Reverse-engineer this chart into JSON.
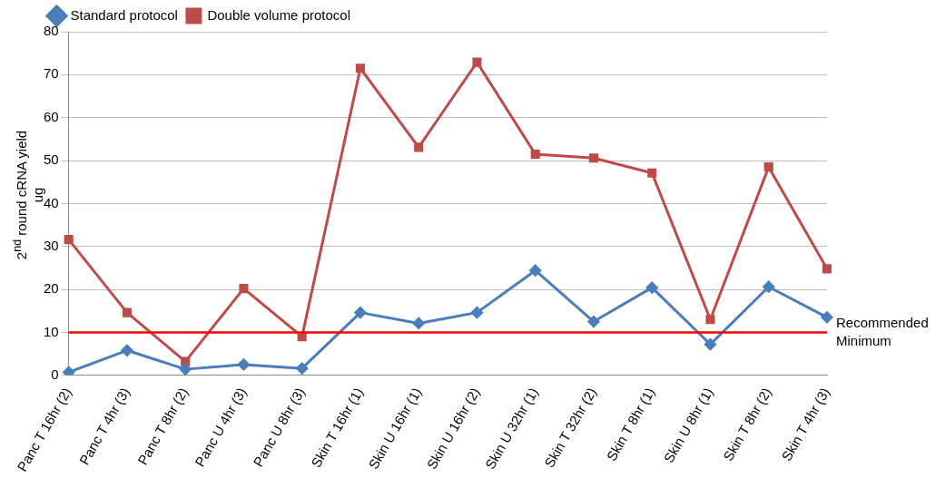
{
  "chart_data": {
    "type": "line",
    "ylabel": "2$^{nd}$ round cRNA yield\nug",
    "categories": [
      "Panc T 16hr (2)",
      "Panc T 4hr (3)",
      "Panc T 8hr (2)",
      "Panc U 4hr (3)",
      "Panc U 8hr (3)",
      "Skin T 16hr (1)",
      "Skin U 16hr (1)",
      "Skin U 16hr (2)",
      "Skin U 32hr (1)",
      "Skin T 32hr (2)",
      "Skin T 8hr (1)",
      "Skin U 8hr (1)",
      "Skin T 8hr (2)",
      "Skin T 4hr (3)"
    ],
    "series": [
      {
        "name": "Standard protocol",
        "color": "#4a7ebb",
        "marker": "diamond",
        "values": [
          0.7,
          5.8,
          1.4,
          2.5,
          1.6,
          14.6,
          12.1,
          14.6,
          24.4,
          12.5,
          20.4,
          7.2,
          20.6,
          13.5
        ]
      },
      {
        "name": "Double volume protocol",
        "color": "#be4b48",
        "marker": "square",
        "values": [
          31.6,
          14.6,
          3.2,
          20.2,
          9.0,
          71.5,
          53.1,
          72.9,
          51.5,
          50.6,
          47.1,
          13.0,
          48.5,
          24.8
        ]
      }
    ],
    "ylim": [
      0,
      80
    ],
    "yticks": [
      0,
      10,
      20,
      30,
      40,
      50,
      60,
      70,
      80
    ],
    "grid": "y",
    "legend": "top left",
    "line_style": "solid",
    "ref_lines": [
      {
        "axis": "y",
        "value": 10,
        "label": "Recommended Minimum",
        "color": "#ff0000"
      }
    ]
  }
}
